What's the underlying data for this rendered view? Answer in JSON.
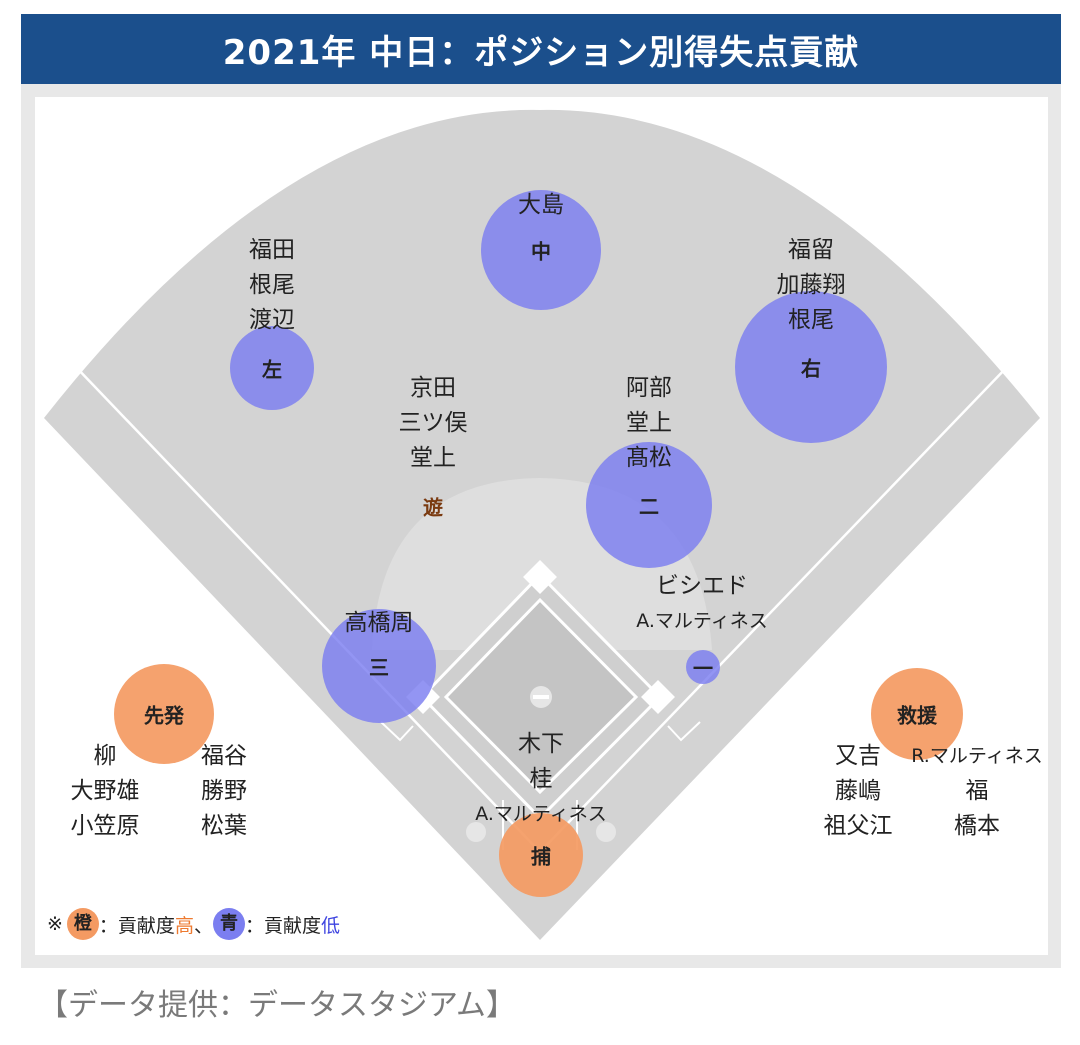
{
  "title": "2021年 中日：ポジション別得失点貢献",
  "colors": {
    "high": "#f49a62",
    "low": "#7b7ef0",
    "banner": "#1b4f8c"
  },
  "positions": {
    "center": {
      "label": "中",
      "contribution": "low",
      "players": [
        "大島"
      ]
    },
    "left": {
      "label": "左",
      "contribution": "low",
      "players": [
        "福田",
        "根尾",
        "渡辺"
      ]
    },
    "right": {
      "label": "右",
      "contribution": "low",
      "players": [
        "福留",
        "加藤翔",
        "根尾"
      ]
    },
    "shortstop": {
      "label": "遊",
      "players": [
        "京田",
        "三ツ俣",
        "堂上"
      ]
    },
    "second": {
      "label": "二",
      "contribution": "low",
      "players": [
        "阿部",
        "堂上",
        "髙松"
      ]
    },
    "first": {
      "label": "一",
      "contribution": "low",
      "players": [
        "ビシエド",
        "A.マルティネス"
      ]
    },
    "third": {
      "label": "三",
      "contribution": "low",
      "players": [
        "高橋周"
      ]
    },
    "catcher": {
      "label": "捕",
      "contribution": "high",
      "players": [
        "木下",
        "桂",
        "A.マルティネス"
      ]
    },
    "pitcher": {
      "label": "ー"
    },
    "starter": {
      "label": "先発",
      "contribution": "high",
      "players_col1": [
        "柳",
        "大野雄",
        "小笠原"
      ],
      "players_col2": [
        "福谷",
        "勝野",
        "松葉"
      ]
    },
    "reliever": {
      "label": "救援",
      "contribution": "high",
      "players_col1": [
        "又吉",
        "藤嶋",
        "祖父江"
      ],
      "players_col2": [
        "R.マルティネス",
        "福",
        "橋本"
      ]
    }
  },
  "legend": {
    "prefix": "※",
    "orange_glyph": "橙",
    "orange_text": "：貢献度",
    "orange_level": "高",
    "separator": "、",
    "blue_glyph": "青",
    "blue_text": "：貢献度",
    "blue_level": "低"
  },
  "source": "【データ提供：データスタジアム】"
}
